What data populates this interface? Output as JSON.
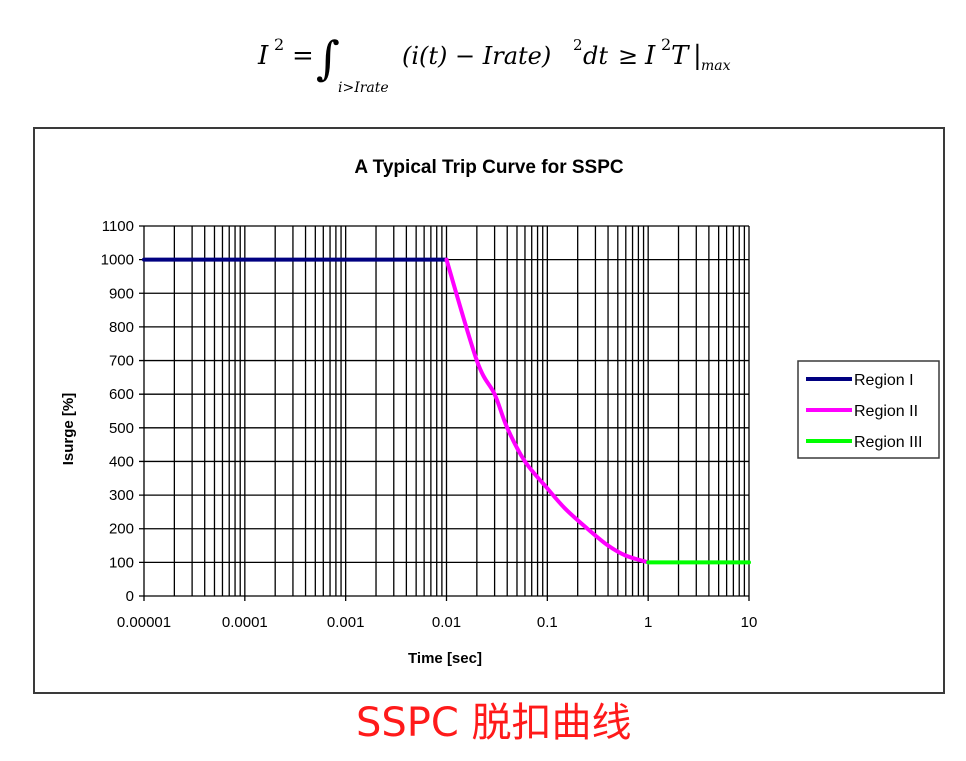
{
  "formula": {
    "lhs": "I",
    "lhs_sup": "2",
    "equals": "=",
    "integral_subscript": "i>Irate",
    "integrand": "(i(t) − Irate)",
    "integrand_sup": "2",
    "dt": "dt",
    "geq": "≥",
    "rhs": "I",
    "rhs_sup": "2",
    "rhs_T": "T",
    "rhs_bar": "|",
    "rhs_sub": "max"
  },
  "caption": "SSPC 脱扣曲线",
  "colors": {
    "region1": "#000080",
    "region2": "#ff00ff",
    "region3": "#00ff00",
    "caption": "#ff1a1a",
    "grid": "#000000",
    "frame": "#3a3a3a"
  },
  "chart_data": {
    "type": "line",
    "title": "A Typical Trip Curve for SSPC",
    "xlabel": "Time [sec]",
    "ylabel": "Isurge [%]",
    "xscale": "log",
    "xlim": [
      1e-05,
      10
    ],
    "ylim": [
      0,
      1100
    ],
    "xticks": [
      "0.00001",
      "0.0001",
      "0.001",
      "0.01",
      "0.1",
      "1",
      "10"
    ],
    "yticks": [
      "0",
      "100",
      "200",
      "300",
      "400",
      "500",
      "600",
      "700",
      "800",
      "900",
      "1000",
      "1100"
    ],
    "grid": true,
    "legend_position": "right",
    "series": [
      {
        "name": "Region I",
        "color": "#000080",
        "x": [
          1e-05,
          0.01
        ],
        "y": [
          1000,
          1000
        ]
      },
      {
        "name": "Region II",
        "color": "#ff00ff",
        "x": [
          0.01,
          0.02,
          0.03,
          0.04,
          0.06,
          0.1,
          0.15,
          0.25,
          0.4,
          0.6,
          1.0
        ],
        "y": [
          1000,
          700,
          600,
          500,
          400,
          320,
          260,
          200,
          150,
          120,
          100
        ]
      },
      {
        "name": "Region III",
        "color": "#00ff00",
        "x": [
          1.0,
          10
        ],
        "y": [
          100,
          100
        ]
      }
    ]
  }
}
